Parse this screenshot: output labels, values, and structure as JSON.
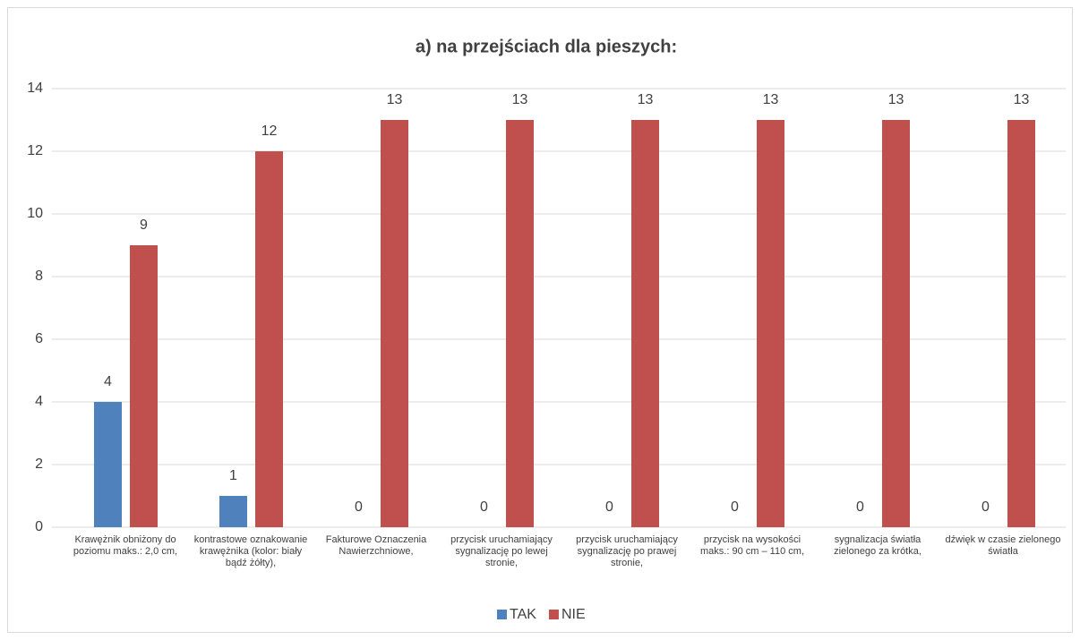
{
  "chart_data": {
    "type": "bar",
    "title": "a)  na przejściach dla pieszych:",
    "categories": [
      "Krawężnik obniżony do poziomu maks.: 2,0 cm,",
      "kontrastowe oznakowanie krawężnika (kolor: biały bądź żółty),",
      "Fakturowe Oznaczenia Nawierzchniowe,",
      "przycisk uruchamiający sygnalizację po lewej stronie,",
      "przycisk uruchamiający sygnalizację po prawej stronie,",
      "przycisk na wysokości maks.: 90 cm – 110 cm,",
      "sygnalizacja światła zielonego za krótka,",
      "dźwięk w czasie zielonego światła"
    ],
    "series": [
      {
        "name": "TAK",
        "color": "#4f81bd",
        "values": [
          4,
          1,
          0,
          0,
          0,
          0,
          0,
          0
        ]
      },
      {
        "name": "NIE",
        "color": "#c0504d",
        "values": [
          9,
          12,
          13,
          13,
          13,
          13,
          13,
          13
        ]
      }
    ],
    "ylim": [
      0,
      14
    ],
    "yticks": [
      0,
      2,
      4,
      6,
      8,
      10,
      12,
      14
    ],
    "grid": true,
    "legend": "bottom"
  }
}
